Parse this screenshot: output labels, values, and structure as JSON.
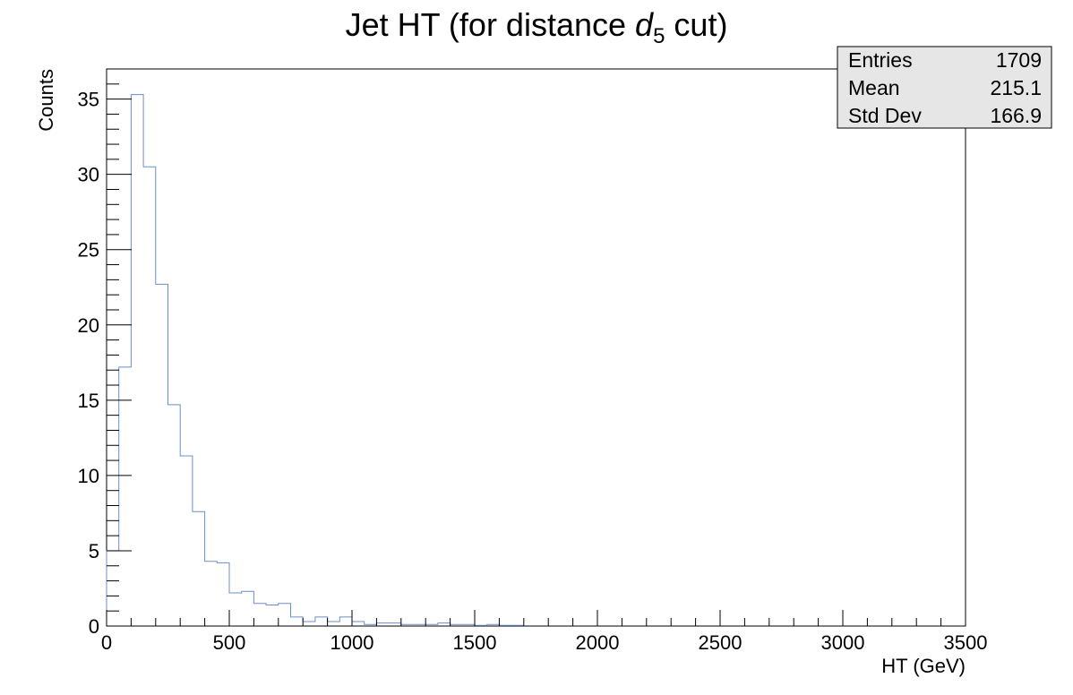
{
  "chart_data": {
    "type": "histogram",
    "title": {
      "prefix": "Jet HT (for distance ",
      "var": "d",
      "sub": "5",
      "suffix": " cut)"
    },
    "xlabel": "HT (GeV)",
    "ylabel": "Counts",
    "xlim": [
      0,
      3500
    ],
    "ylim": [
      0,
      37
    ],
    "x_ticks": [
      0,
      500,
      1000,
      1500,
      2000,
      2500,
      3000,
      3500
    ],
    "y_ticks": [
      0,
      5,
      10,
      15,
      20,
      25,
      30,
      35
    ],
    "bin_width": 50,
    "bin_start": 0,
    "values": [
      5.0,
      17.2,
      35.3,
      30.5,
      22.7,
      14.7,
      11.3,
      7.6,
      4.3,
      4.2,
      2.2,
      2.3,
      1.5,
      1.4,
      1.5,
      0.6,
      0.3,
      0.6,
      0.3,
      0.6,
      0.3,
      0.1,
      0.2,
      0.2,
      0.1,
      0.1,
      0.1,
      0.2,
      0.1,
      0.1,
      0.05,
      0.1,
      0.05,
      0.05,
      0.0,
      0.0,
      0.0,
      0.0,
      0.0,
      0.0,
      0.0,
      0.0,
      0.0,
      0.0,
      0.0,
      0.0,
      0.0,
      0.0,
      0.0,
      0.0,
      0.0,
      0.0,
      0.0,
      0.0,
      0.0,
      0.0,
      0.0,
      0.0,
      0.0,
      0.0,
      0.0,
      0.0,
      0.0,
      0.0,
      0.0,
      0.0,
      0.0,
      0.0,
      0.0,
      0.0
    ],
    "line_color": "#6a8fc9",
    "legend": "top-right",
    "grid": false,
    "stats": [
      {
        "label": "Entries",
        "value": "1709"
      },
      {
        "label": "Mean",
        "value": "215.1"
      },
      {
        "label": "Std Dev",
        "value": "166.9"
      }
    ]
  }
}
